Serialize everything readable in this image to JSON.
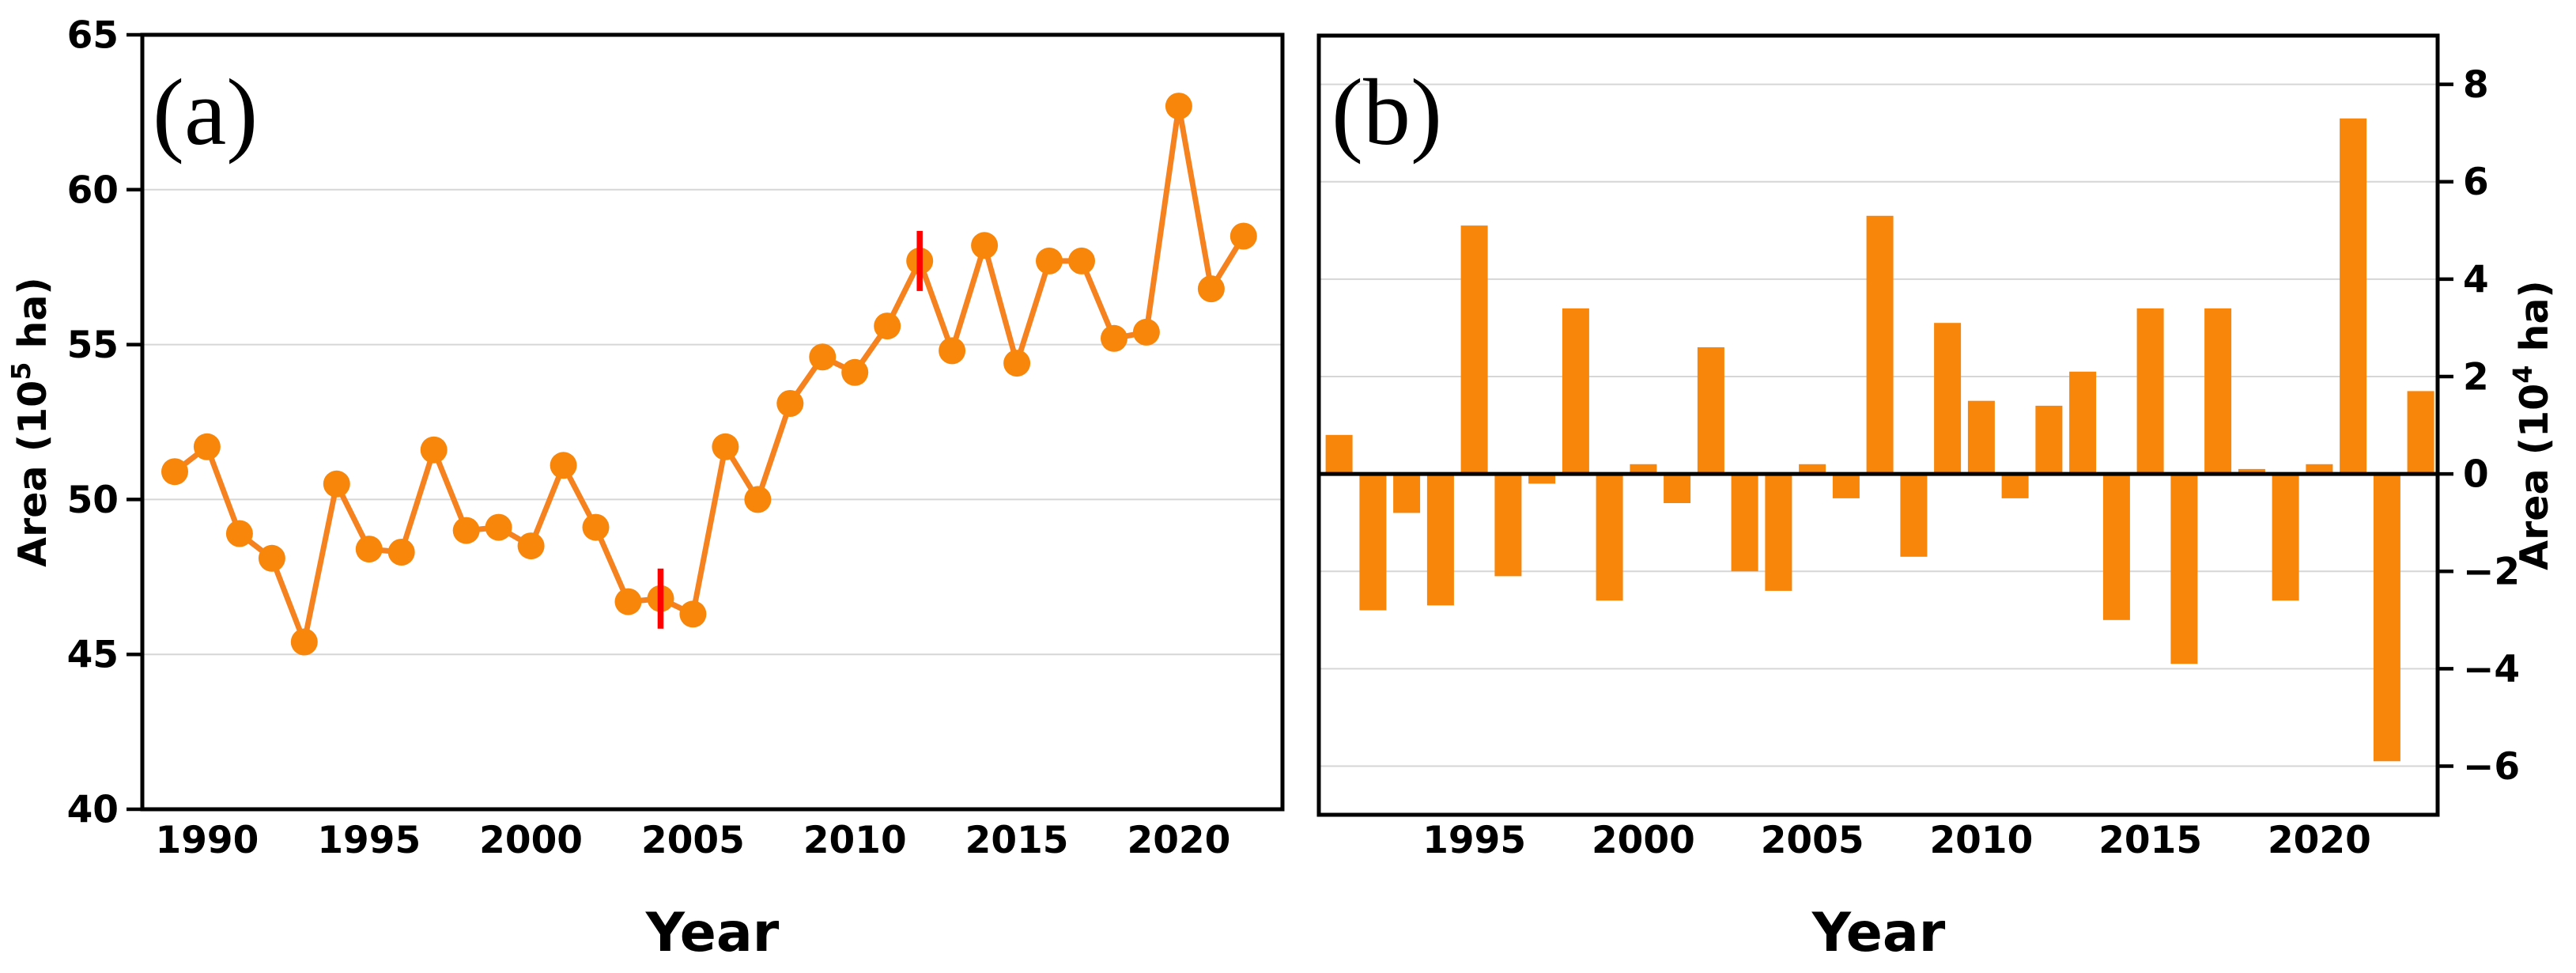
{
  "figure": {
    "background": "#FFFFFF",
    "orange": "#F8860B",
    "line_orange": "#F5821F",
    "red_marker_color": "#FF0000",
    "grid_color": "#D6D6D6",
    "frame_color": "#000000"
  },
  "chart_data": [
    {
      "type": "line",
      "panel_label": "(a)",
      "title": "",
      "xlabel": "Year",
      "ylabel": "Area (10^5 ha)",
      "ylabel_parts": [
        {
          "text": "Area  (10",
          "sup": false
        },
        {
          "text": "5",
          "sup": true
        },
        {
          "text": " ha)",
          "sup": false
        }
      ],
      "xlim": [
        1988.0,
        2023.2
      ],
      "ylim": [
        40,
        65
      ],
      "xticks": [
        1990,
        1995,
        2000,
        2005,
        2010,
        2015,
        2020
      ],
      "yticks": [
        40,
        45,
        50,
        55,
        60,
        65
      ],
      "yticklabels": [
        "40",
        "45",
        "50",
        "55",
        "60",
        "65"
      ],
      "grid": true,
      "legend": null,
      "x": [
        1989,
        1990,
        1991,
        1992,
        1993,
        1994,
        1995,
        1996,
        1997,
        1998,
        1999,
        2000,
        2001,
        2002,
        2003,
        2004,
        2005,
        2006,
        2007,
        2008,
        2009,
        2010,
        2011,
        2012,
        2013,
        2014,
        2015,
        2016,
        2017,
        2018,
        2019,
        2020,
        2021,
        2022
      ],
      "y": [
        50.9,
        51.7,
        48.9,
        48.1,
        45.4,
        50.5,
        48.4,
        48.3,
        51.6,
        49.0,
        49.1,
        48.5,
        51.1,
        49.1,
        46.7,
        46.8,
        46.3,
        51.7,
        50.0,
        53.1,
        54.6,
        54.1,
        55.6,
        57.7,
        54.8,
        58.2,
        54.4,
        57.7,
        57.7,
        55.2,
        55.4,
        62.7,
        56.8,
        58.5
      ],
      "annotations": [
        {
          "x": 2004,
          "y": 46.8,
          "type": "red-tick"
        },
        {
          "x": 2012,
          "y": 57.7,
          "type": "red-tick"
        }
      ]
    },
    {
      "type": "bar",
      "panel_label": "(b)",
      "title": "",
      "xlabel": "Year",
      "ylabel": "Area (10^4 ha)",
      "ylabel_parts": [
        {
          "text": "Area  (10",
          "sup": false
        },
        {
          "text": "4",
          "sup": true
        },
        {
          "text": " ha)",
          "sup": false
        }
      ],
      "xlim": [
        1990.4,
        2023.5
      ],
      "ylim": [
        -7,
        9
      ],
      "xticks": [
        1995,
        2000,
        2005,
        2010,
        2015,
        2020
      ],
      "yticks": [
        8,
        6,
        4,
        2,
        0,
        -2,
        -4,
        -6
      ],
      "yticklabels": [
        "8",
        "6",
        "4",
        "2",
        "0",
        "−2",
        "−4",
        "−6"
      ],
      "grid": true,
      "legend": null,
      "x": [
        1991,
        1992,
        1993,
        1994,
        1995,
        1996,
        1997,
        1998,
        1999,
        2000,
        2001,
        2002,
        2003,
        2004,
        2005,
        2006,
        2007,
        2008,
        2009,
        2010,
        2011,
        2012,
        2013,
        2014,
        2015,
        2016,
        2017,
        2018,
        2019,
        2020,
        2021,
        2022,
        2023
      ],
      "y": [
        0.8,
        -2.8,
        -0.8,
        -2.7,
        5.1,
        -2.1,
        -0.2,
        3.4,
        -2.6,
        0.2,
        -0.6,
        2.6,
        -2.0,
        -2.4,
        0.2,
        -0.5,
        5.3,
        -1.7,
        3.1,
        1.5,
        -0.5,
        1.4,
        2.1,
        -3.0,
        3.4,
        -3.9,
        3.4,
        0.1,
        -2.6,
        0.2,
        7.3,
        -5.9,
        1.7
      ]
    }
  ]
}
